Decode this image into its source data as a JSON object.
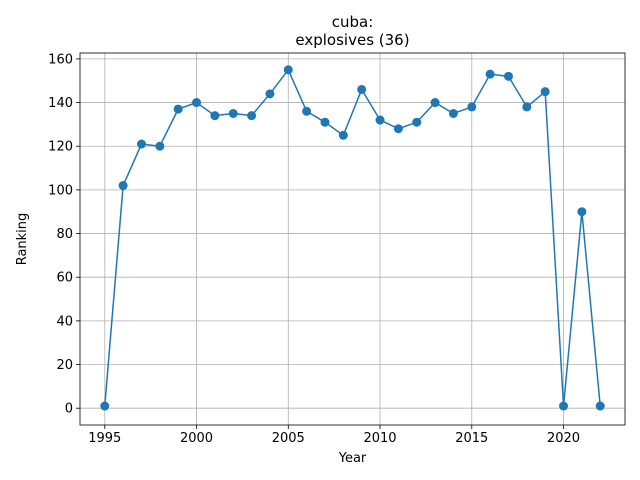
{
  "chart_data": {
    "type": "line",
    "title_line1": "cuba:",
    "title_line2": "explosives (36)",
    "xlabel": "Year",
    "ylabel": "Ranking",
    "xlim": [
      1993.65,
      2023.35
    ],
    "ylim": [
      -7.7,
      162.7
    ],
    "xticks": [
      1995,
      2000,
      2005,
      2010,
      2015,
      2020
    ],
    "yticks": [
      0,
      20,
      40,
      60,
      80,
      100,
      120,
      140,
      160
    ],
    "grid": true,
    "line_color": "#1f77b4",
    "series": [
      {
        "x": [
          1995,
          1996,
          1997,
          1998,
          1999,
          2000,
          2001,
          2002,
          2003,
          2004,
          2005,
          2006,
          2007,
          2008,
          2009,
          2010,
          2011,
          2012,
          2013,
          2014,
          2015,
          2016,
          2017,
          2018,
          2019,
          2020,
          2021,
          2022
        ],
        "y": [
          1,
          102,
          121,
          120,
          137,
          140,
          134,
          135,
          134,
          144,
          155,
          136,
          131,
          125,
          146,
          132,
          128,
          131,
          140,
          135,
          138,
          153,
          152,
          138,
          145,
          1,
          90,
          1
        ]
      }
    ]
  }
}
